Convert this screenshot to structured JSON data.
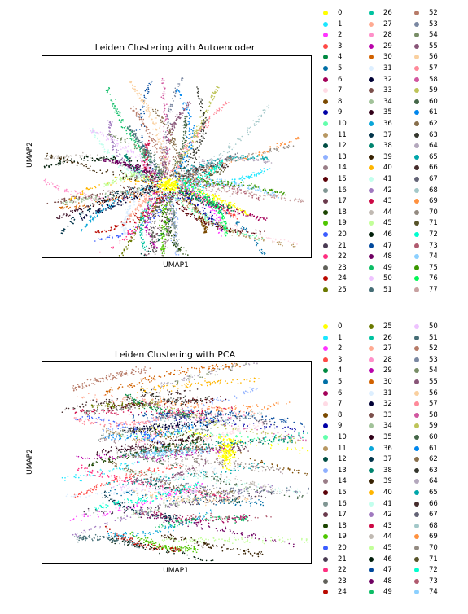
{
  "chart_data": [
    {
      "type": "scatter",
      "title": "Leiden Clustering with Autoencoder",
      "xlabel": "UMAP1",
      "ylabel": "UMAP2",
      "grid": false,
      "legend_placement": "right, outside axes, 3 columns",
      "legend": [
        "0",
        "1",
        "2",
        "3",
        "4",
        "5",
        "6",
        "7",
        "8",
        "9",
        "10",
        "11",
        "12",
        "13",
        "14",
        "15",
        "16",
        "17",
        "18",
        "19",
        "20",
        "21",
        "22",
        "23",
        "24",
        "25",
        "26",
        "27",
        "28",
        "29",
        "30",
        "31",
        "32",
        "33",
        "34",
        "35",
        "36",
        "37",
        "38",
        "39",
        "40",
        "41",
        "42",
        "43",
        "44",
        "45",
        "46",
        "47",
        "48",
        "49",
        "50",
        "51",
        "52",
        "53",
        "54",
        "55",
        "56",
        "57",
        "58",
        "59",
        "60",
        "61",
        "62",
        "63",
        "64",
        "65",
        "66",
        "67",
        "68",
        "69",
        "70",
        "71",
        "72",
        "73",
        "74",
        "75",
        "76",
        "77"
      ],
      "legend_columns": 3,
      "legend_rows": 26
    },
    {
      "type": "scatter",
      "title": "Leiden Clustering with PCA",
      "xlabel": "UMAP1",
      "ylabel": "UMAP2",
      "grid": false,
      "legend_placement": "right, outside axes, 3 columns",
      "legend": [
        "0",
        "1",
        "2",
        "3",
        "4",
        "5",
        "6",
        "7",
        "8",
        "9",
        "10",
        "11",
        "12",
        "13",
        "14",
        "15",
        "16",
        "17",
        "18",
        "19",
        "20",
        "21",
        "22",
        "23",
        "24",
        "25",
        "26",
        "27",
        "28",
        "29",
        "30",
        "31",
        "32",
        "33",
        "34",
        "35",
        "36",
        "37",
        "38",
        "39",
        "40",
        "41",
        "42",
        "43",
        "44",
        "45",
        "46",
        "47",
        "48",
        "49",
        "50",
        "51",
        "52",
        "53",
        "54",
        "55",
        "56",
        "57",
        "58",
        "59",
        "60",
        "61",
        "62",
        "63",
        "64",
        "65",
        "66",
        "67",
        "68",
        "69",
        "70",
        "71",
        "72",
        "73",
        "74"
      ],
      "legend_columns": 3,
      "legend_rows": 25
    }
  ],
  "palette": [
    "#ffff00",
    "#1ce6ff",
    "#ff34ff",
    "#ff4a46",
    "#008941",
    "#006fa6",
    "#a30059",
    "#ffdbe5",
    "#7a4900",
    "#0000a6",
    "#63ffac",
    "#b79762",
    "#004d43",
    "#8fb0ff",
    "#997d87",
    "#5a0007",
    "#809693",
    "#6a3a4c",
    "#1b4400",
    "#4fc601",
    "#3b5dff",
    "#4a3b53",
    "#ff2f80",
    "#61615a",
    "#ba0900",
    "#6b7900",
    "#00c2a0",
    "#ffaa92",
    "#ff90c9",
    "#b903aa",
    "#d16100",
    "#ddefff",
    "#000035",
    "#7b4f4b",
    "#a1c299",
    "#300018",
    "#0aa6d8",
    "#013349",
    "#00846f",
    "#372101",
    "#ffb500",
    "#c2ffed",
    "#a079bf",
    "#cc0744",
    "#c0b9b2",
    "#c2ff99",
    "#001e09",
    "#00489c",
    "#6f0062",
    "#0cbd66",
    "#eec3ff",
    "#456d75",
    "#b77b68",
    "#7a87a1",
    "#788d66",
    "#885578",
    "#fad09f",
    "#ff8a9a",
    "#d157a0",
    "#bec459",
    "#456648",
    "#0086ed",
    "#886f4c",
    "#34362d",
    "#b4a8bd",
    "#00a6aa",
    "#452c2c",
    "#636375",
    "#a3c8c9",
    "#ff913f",
    "#938a81",
    "#575329",
    "#00fecf",
    "#b05b6f",
    "#8cd0ff",
    "#3b9700",
    "#04f757",
    "#c8a1a1"
  ]
}
